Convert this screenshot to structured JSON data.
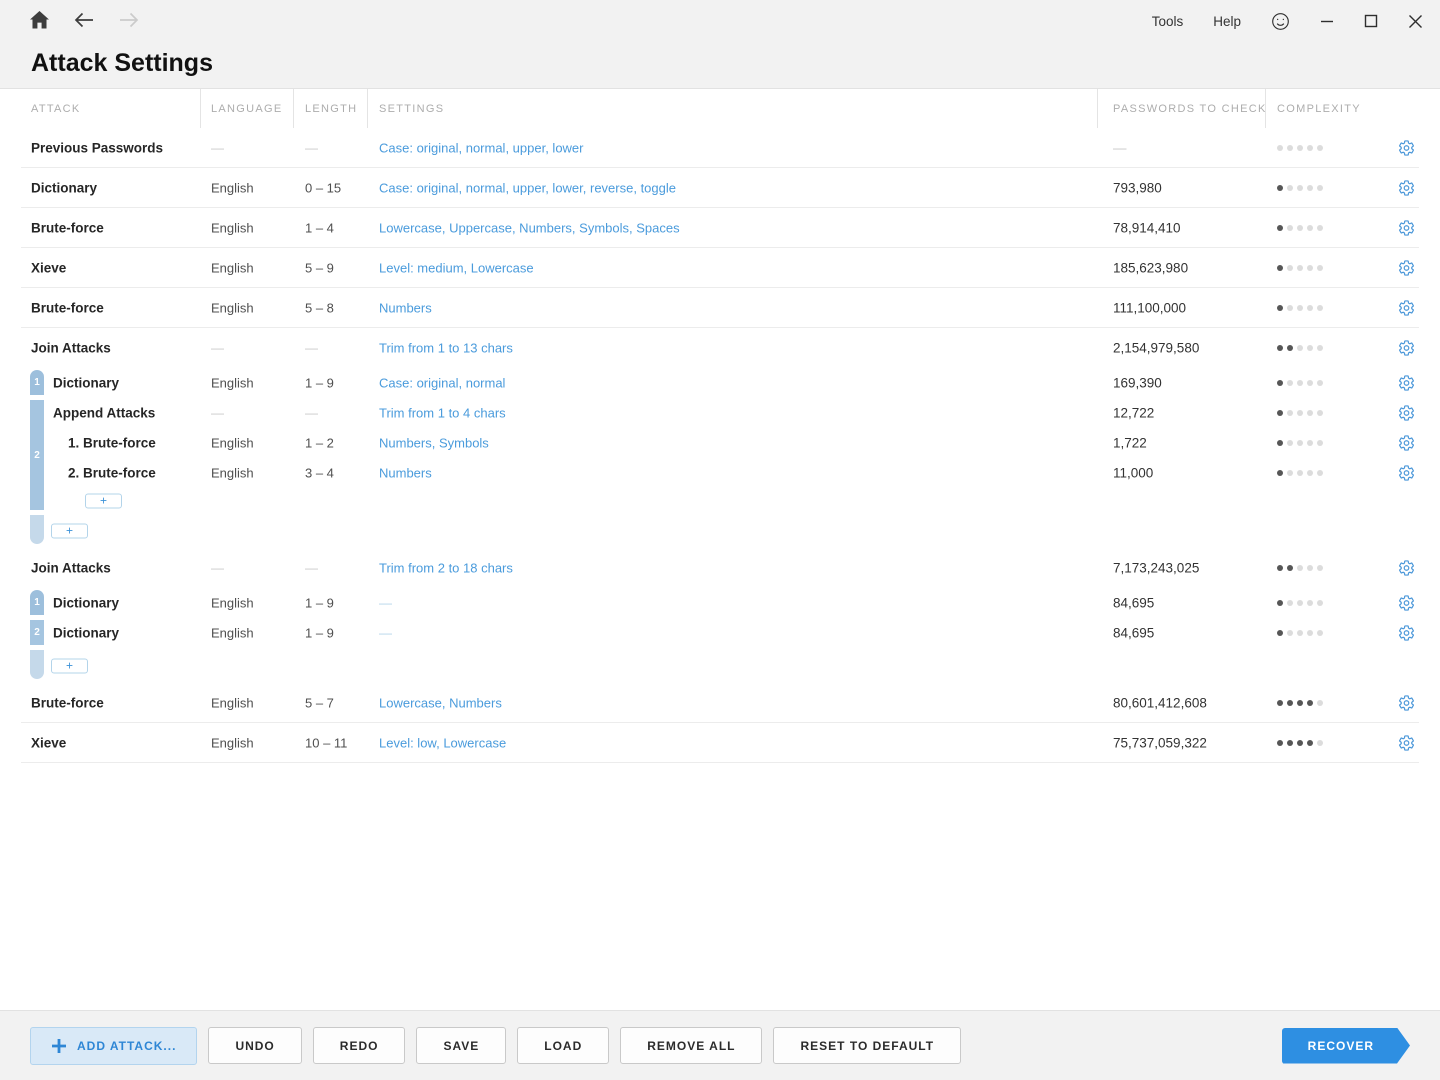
{
  "titlebar": {
    "menu_items": [
      {
        "label": "Tools"
      },
      {
        "label": "Help"
      }
    ]
  },
  "page": {
    "title": "Attack Settings"
  },
  "table": {
    "headers": {
      "attack": "ATTACK",
      "language": "LANGUAGE",
      "length": "LENGTH",
      "settings": "SETTINGS",
      "passwords": "PASSWORDS TO CHECK",
      "complexity": "COMPLEXITY"
    },
    "complexity_dots_total": 5,
    "add_sub_label": "+",
    "rows": [
      {
        "type": "attack",
        "name": "Previous Passwords",
        "language": "—",
        "length": "—",
        "settings": "Case: original, normal, upper, lower",
        "passwords": "—",
        "complexity": 0,
        "border": true
      },
      {
        "type": "attack",
        "name": "Dictionary",
        "language": "English",
        "length": "0 – 15",
        "settings": "Case: original, normal, upper, lower, reverse, toggle",
        "passwords": "793,980",
        "complexity": 1,
        "border": true
      },
      {
        "type": "attack",
        "name": "Brute-force",
        "language": "English",
        "length": "1 – 4",
        "settings": "Lowercase, Uppercase, Numbers, Symbols, Spaces",
        "passwords": "78,914,410",
        "complexity": 1,
        "border": true
      },
      {
        "type": "attack",
        "name": "Xieve",
        "language": "English",
        "length": "5 – 9",
        "settings": "Level: medium, Lowercase",
        "passwords": "185,623,980",
        "complexity": 1,
        "border": true
      },
      {
        "type": "attack",
        "name": "Brute-force",
        "language": "English",
        "length": "5 – 8",
        "settings": "Numbers",
        "passwords": "111,100,000",
        "complexity": 1,
        "border": true
      },
      {
        "type": "attack",
        "name": "Join Attacks",
        "language": "—",
        "length": "—",
        "settings": "Trim from 1 to 13 chars",
        "passwords": "2,154,979,580",
        "complexity": 2,
        "border": false
      },
      {
        "type": "sub",
        "indent": 1,
        "name": "Dictionary",
        "language": "English",
        "length": "1 – 9",
        "settings": "Case: original, normal",
        "passwords": "169,390",
        "complexity": 1
      },
      {
        "type": "sub",
        "indent": 1,
        "name": "Append Attacks",
        "language": "—",
        "length": "—",
        "settings": "Trim from 1 to 4 chars",
        "passwords": "12,722",
        "complexity": 1
      },
      {
        "type": "sub",
        "indent": 2,
        "name": "1. Brute-force",
        "language": "English",
        "length": "1 – 2",
        "settings": "Numbers, Symbols",
        "passwords": "1,722",
        "complexity": 1
      },
      {
        "type": "sub",
        "indent": 2,
        "name": "2. Brute-force",
        "language": "English",
        "length": "3 – 4",
        "settings": "Numbers",
        "passwords": "11,000",
        "complexity": 1
      },
      {
        "type": "plus",
        "level": "inner"
      },
      {
        "type": "plus",
        "level": "outer"
      },
      {
        "type": "attack",
        "name": "Join Attacks",
        "language": "—",
        "length": "—",
        "settings": "Trim from 2 to 18 chars",
        "passwords": "7,173,243,025",
        "complexity": 2,
        "border": false
      },
      {
        "type": "sub",
        "indent": 1,
        "name": "Dictionary",
        "language": "English",
        "length": "1 – 9",
        "settings": "—",
        "passwords": "84,695",
        "complexity": 1
      },
      {
        "type": "sub",
        "indent": 1,
        "name": "Dictionary",
        "language": "English",
        "length": "1 – 9",
        "settings": "—",
        "passwords": "84,695",
        "complexity": 1
      },
      {
        "type": "plus",
        "level": "outer"
      },
      {
        "type": "attack",
        "name": "Brute-force",
        "language": "English",
        "length": "5 – 7",
        "settings": "Lowercase, Numbers",
        "passwords": "80,601,412,608",
        "complexity": 4,
        "border": true
      },
      {
        "type": "attack",
        "name": "Xieve",
        "language": "English",
        "length": "10 – 11",
        "settings": "Level: low, Lowercase",
        "passwords": "75,737,059,322",
        "complexity": 4,
        "border": true
      }
    ],
    "groups": [
      {
        "segments": [
          {
            "label": "1",
            "rows": [
              6
            ]
          },
          {
            "label": "2",
            "rows": [
              7,
              8,
              9,
              10
            ]
          }
        ],
        "tail_rows": [
          11
        ]
      },
      {
        "segments": [
          {
            "label": "1",
            "rows": [
              13
            ]
          },
          {
            "label": "2",
            "rows": [
              14
            ]
          }
        ],
        "tail_rows": [
          15
        ]
      }
    ]
  },
  "toolbar": {
    "add_attack": "ADD ATTACK...",
    "undo": "UNDO",
    "redo": "REDO",
    "save": "SAVE",
    "load": "LOAD",
    "remove_all": "REMOVE ALL",
    "reset": "RESET TO DEFAULT",
    "recover": "RECOVER"
  },
  "colors": {
    "accent_blue": "#2e8fe2",
    "link_blue": "#4a9bdc",
    "gear_blue": "#4a97d9",
    "group_bar": "#a5c5e0",
    "group_bar_tail": "#c5d9ea",
    "dot_on": "#565656",
    "dot_off": "#dcdcdc",
    "background": "#f2f2f2"
  }
}
